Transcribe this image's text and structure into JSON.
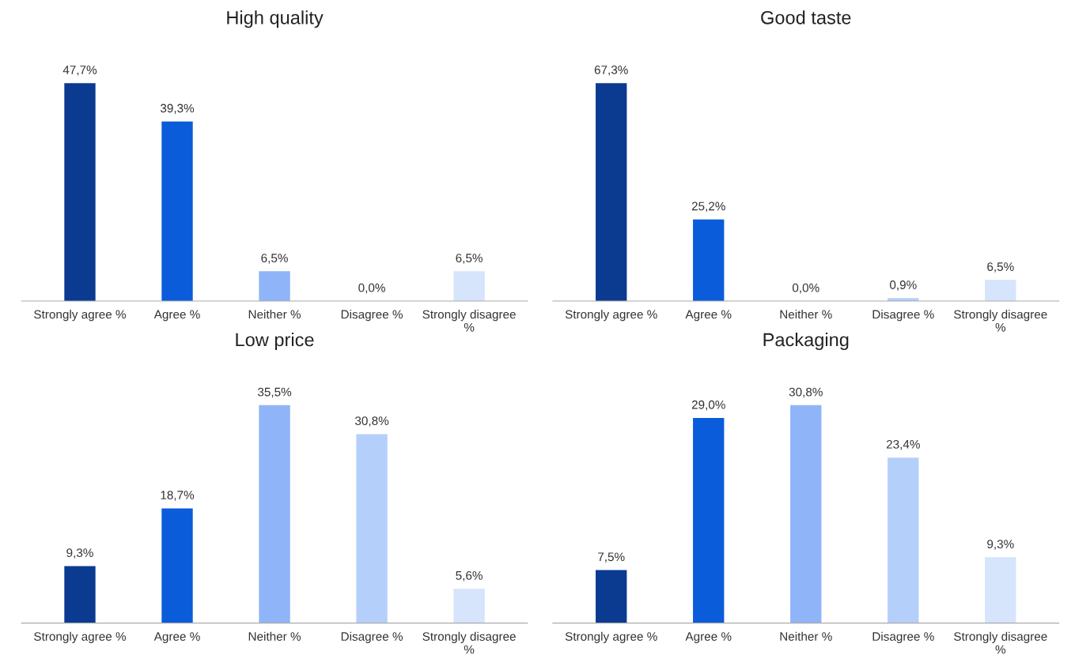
{
  "chart_data": [
    {
      "type": "bar",
      "title": "High quality",
      "categories": [
        "Strongly agree %",
        "Agree %",
        "Neither %",
        "Disagree %",
        "Strongly disagree %"
      ],
      "values": [
        47.7,
        39.3,
        6.5,
        0.0,
        6.5
      ],
      "value_labels": [
        "47,7%",
        "39,3%",
        "6,5%",
        "0,0%",
        "6,5%"
      ],
      "colors": [
        "#0b3a91",
        "#0b5cdb",
        "#8fb4f8",
        "#b5cffb",
        "#d6e4fc"
      ]
    },
    {
      "type": "bar",
      "title": "Good taste",
      "categories": [
        "Strongly agree %",
        "Agree %",
        "Neither %",
        "Disagree %",
        "Strongly disagree %"
      ],
      "values": [
        67.3,
        25.2,
        0.0,
        0.9,
        6.5
      ],
      "value_labels": [
        "67,3%",
        "25,2%",
        "0,0%",
        "0,9%",
        "6,5%"
      ],
      "colors": [
        "#0b3a91",
        "#0b5cdb",
        "#8fb4f8",
        "#b5cffb",
        "#d6e4fc"
      ]
    },
    {
      "type": "bar",
      "title": "Low price",
      "categories": [
        "Strongly agree %",
        "Agree %",
        "Neither %",
        "Disagree %",
        "Strongly disagree %"
      ],
      "values": [
        9.3,
        18.7,
        35.5,
        30.8,
        5.6
      ],
      "value_labels": [
        "9,3%",
        "18,7%",
        "35,5%",
        "30,8%",
        "5,6%"
      ],
      "colors": [
        "#0b3a91",
        "#0b5cdb",
        "#8fb4f8",
        "#b5cffb",
        "#d6e4fc"
      ]
    },
    {
      "type": "bar",
      "title": "Packaging",
      "categories": [
        "Strongly agree %",
        "Agree %",
        "Neither %",
        "Disagree %",
        "Strongly disagree %"
      ],
      "values": [
        7.5,
        29.0,
        30.8,
        23.4,
        9.3
      ],
      "value_labels": [
        "7,5%",
        "29,0%",
        "30,8%",
        "23,4%",
        "9,3%"
      ],
      "colors": [
        "#0b3a91",
        "#0b5cdb",
        "#8fb4f8",
        "#b5cffb",
        "#d6e4fc"
      ]
    }
  ]
}
